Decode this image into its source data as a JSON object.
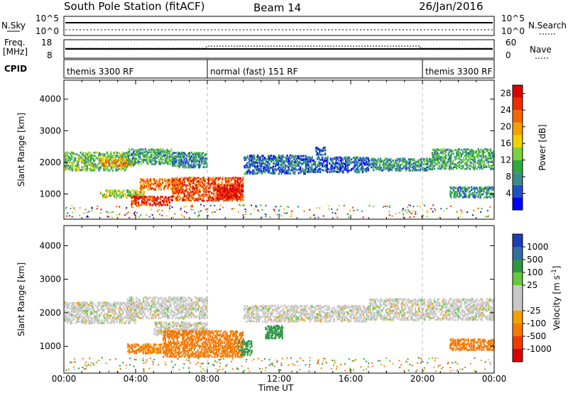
{
  "header": {
    "station": "South Pole Station (fitACF)",
    "beam": "Beam 14",
    "date": "26/Jan/2016"
  },
  "top_panels": {
    "nsky_label": "N.Sky",
    "nsky_ticks": [
      "10^5",
      "10^0"
    ],
    "nsearch_label": "N.Search",
    "nsearch_ticks": [
      "10^5",
      "10^0"
    ],
    "freq_label": "Freq.",
    "freq_unit": "[MHz]",
    "freq_ticks": [
      "18",
      "8"
    ],
    "nave_label": "Nave",
    "nave_ticks": [
      "60",
      "0"
    ],
    "cpid_label": "CPID",
    "cpid_segments": [
      {
        "label": "themis 3300 RF",
        "start": 0,
        "end": 8
      },
      {
        "label": "normal (fast) 151 RF",
        "start": 8,
        "end": 20
      },
      {
        "label": "themis 3300 RF",
        "start": 20,
        "end": 24
      }
    ]
  },
  "chart_data": [
    {
      "type": "heatmap",
      "title": "",
      "xlabel": "Time UT",
      "ylabel": "Slant Range [km]",
      "xlim": [
        0,
        24
      ],
      "ylim": [
        200,
        4600
      ],
      "x_ticks": [
        "00:00",
        "04:00",
        "08:00",
        "12:00",
        "16:00",
        "20:00",
        "00:00"
      ],
      "y_ticks": [
        1000,
        2000,
        3000,
        4000
      ],
      "colorbar": {
        "label": "Power [dB]",
        "ticks": [
          4,
          8,
          12,
          16,
          20,
          24,
          28
        ],
        "range": [
          0,
          30
        ],
        "colors": [
          "#0000ff",
          "#1e50c8",
          "#3c8c8c",
          "#2eaa3c",
          "#7cd23c",
          "#f0d200",
          "#f5a000",
          "#f56400",
          "#eb2d00",
          "#dc0000"
        ]
      },
      "echo_regions": [
        {
          "time": [
            0,
            3.5
          ],
          "range": [
            1700,
            2300
          ],
          "power": 12
        },
        {
          "time": [
            2.0,
            4.0
          ],
          "range": [
            1850,
            2100
          ],
          "power": 20
        },
        {
          "time": [
            3.5,
            6.0
          ],
          "range": [
            1900,
            2400
          ],
          "power": 10
        },
        {
          "time": [
            6.0,
            8.0
          ],
          "range": [
            1800,
            2300
          ],
          "power": 8
        },
        {
          "time": [
            4.2,
            6.5
          ],
          "range": [
            1100,
            1450
          ],
          "power": 22
        },
        {
          "time": [
            2.0,
            4.5
          ],
          "range": [
            850,
            1100
          ],
          "power": 14
        },
        {
          "time": [
            3.7,
            6.0
          ],
          "range": [
            600,
            900
          ],
          "power": 26
        },
        {
          "time": [
            6.0,
            10.0
          ],
          "range": [
            750,
            1500
          ],
          "power": 24
        },
        {
          "time": [
            8.5,
            10.0
          ],
          "range": [
            800,
            1250
          ],
          "power": 28
        },
        {
          "time": [
            10.0,
            13.5
          ],
          "range": [
            1600,
            2200
          ],
          "power": 6
        },
        {
          "time": [
            13.5,
            17.0
          ],
          "range": [
            1650,
            2150
          ],
          "power": 5
        },
        {
          "time": [
            14.0,
            14.6
          ],
          "range": [
            2200,
            2450
          ],
          "power": 6
        },
        {
          "time": [
            17.0,
            20.5
          ],
          "range": [
            1700,
            2100
          ],
          "power": 8
        },
        {
          "time": [
            20.5,
            24.0
          ],
          "range": [
            1750,
            2400
          ],
          "power": 10
        },
        {
          "time": [
            21.5,
            24.0
          ],
          "range": [
            850,
            1200
          ],
          "power": 8
        }
      ]
    },
    {
      "type": "heatmap",
      "title": "",
      "xlabel": "Time UT",
      "ylabel": "Slant Range [km]",
      "xlim": [
        0,
        24
      ],
      "ylim": [
        200,
        4600
      ],
      "x_ticks": [
        "00:00",
        "04:00",
        "08:00",
        "12:00",
        "16:00",
        "20:00",
        "00:00"
      ],
      "y_ticks": [
        1000,
        2000,
        3000,
        4000
      ],
      "colorbar": {
        "label": "Velocity [m s^-1]",
        "ticks": [
          1000,
          500,
          100,
          25,
          -25,
          -100,
          -500,
          -1000
        ],
        "colors": [
          "#1e3cb4",
          "#2e6ea0",
          "#2d9646",
          "#64c83c",
          "#c8c8c8",
          "#c8c8c8",
          "#f5a000",
          "#f57800",
          "#f03c00",
          "#dc0000"
        ]
      },
      "echo_regions": [
        {
          "time": [
            0,
            4.0
          ],
          "range": [
            1650,
            2300
          ],
          "velocity": 0
        },
        {
          "time": [
            3.5,
            8.0
          ],
          "range": [
            1800,
            2450
          ],
          "velocity": 0
        },
        {
          "time": [
            5.0,
            8.0
          ],
          "range": [
            1300,
            1700
          ],
          "velocity": 0
        },
        {
          "time": [
            3.5,
            6.0
          ],
          "range": [
            750,
            1050
          ],
          "velocity": -120
        },
        {
          "time": [
            5.5,
            10.0
          ],
          "range": [
            650,
            1450
          ],
          "velocity": -160
        },
        {
          "time": [
            9.7,
            10.5
          ],
          "range": [
            700,
            1150
          ],
          "velocity": 200
        },
        {
          "time": [
            10.0,
            17.0
          ],
          "range": [
            1700,
            2200
          ],
          "velocity": 0
        },
        {
          "time": [
            11.2,
            12.2
          ],
          "range": [
            1200,
            1600
          ],
          "velocity": 150
        },
        {
          "time": [
            17.0,
            24.0
          ],
          "range": [
            1750,
            2400
          ],
          "velocity": 0
        },
        {
          "time": [
            21.5,
            24.0
          ],
          "range": [
            850,
            1200
          ],
          "velocity": -150
        }
      ]
    }
  ]
}
